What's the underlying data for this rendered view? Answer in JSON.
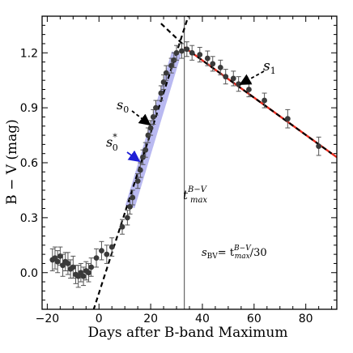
{
  "chart_data": {
    "type": "scatter",
    "xlabel": "Days after B-band Maximum",
    "ylabel": "B − V (mag)",
    "xlim": [
      -22,
      92
    ],
    "ylim": [
      -0.2,
      1.4
    ],
    "xticks": [
      -20,
      0,
      20,
      40,
      60,
      80
    ],
    "yticks": [
      0.0,
      0.3,
      0.6,
      0.9,
      1.2
    ],
    "xtick_labels": [
      "−20",
      "0",
      "20",
      "40",
      "60",
      "80"
    ],
    "ytick_labels": [
      "0.0",
      "0.3",
      "0.6",
      "0.9",
      "1.2"
    ],
    "grid": false,
    "points": [
      {
        "x": -18,
        "y": 0.07,
        "err": 0.06
      },
      {
        "x": -17,
        "y": 0.08,
        "err": 0.06
      },
      {
        "x": -16,
        "y": 0.06,
        "err": 0.06
      },
      {
        "x": -15,
        "y": 0.09,
        "err": 0.05
      },
      {
        "x": -14,
        "y": 0.04,
        "err": 0.06
      },
      {
        "x": -13,
        "y": 0.06,
        "err": 0.05
      },
      {
        "x": -12,
        "y": 0.05,
        "err": 0.06
      },
      {
        "x": -11,
        "y": 0.02,
        "err": 0.05
      },
      {
        "x": -10,
        "y": 0.03,
        "err": 0.06
      },
      {
        "x": -9,
        "y": -0.01,
        "err": 0.05
      },
      {
        "x": -8,
        "y": -0.02,
        "err": 0.06
      },
      {
        "x": -7,
        "y": 0.0,
        "err": 0.05
      },
      {
        "x": -6,
        "y": -0.02,
        "err": 0.05
      },
      {
        "x": -5,
        "y": 0.01,
        "err": 0.05
      },
      {
        "x": -4,
        "y": 0.0,
        "err": 0.05
      },
      {
        "x": -3,
        "y": 0.03,
        "err": 0.05
      },
      {
        "x": -1,
        "y": 0.08,
        "err": 0.05
      },
      {
        "x": 1,
        "y": 0.12,
        "err": 0.05
      },
      {
        "x": 3,
        "y": 0.1,
        "err": 0.05
      },
      {
        "x": 5,
        "y": 0.14,
        "err": 0.05
      },
      {
        "x": 9,
        "y": 0.25,
        "err": 0.04
      },
      {
        "x": 11,
        "y": 0.3,
        "err": 0.04
      },
      {
        "x": 12,
        "y": 0.36,
        "err": 0.04
      },
      {
        "x": 13,
        "y": 0.41,
        "err": 0.04
      },
      {
        "x": 15,
        "y": 0.5,
        "err": 0.04
      },
      {
        "x": 16,
        "y": 0.56,
        "err": 0.04
      },
      {
        "x": 17,
        "y": 0.63,
        "err": 0.04
      },
      {
        "x": 18,
        "y": 0.67,
        "err": 0.04
      },
      {
        "x": 19,
        "y": 0.75,
        "err": 0.04
      },
      {
        "x": 20,
        "y": 0.79,
        "err": 0.04
      },
      {
        "x": 21,
        "y": 0.85,
        "err": 0.04
      },
      {
        "x": 22,
        "y": 0.9,
        "err": 0.04
      },
      {
        "x": 24,
        "y": 0.98,
        "err": 0.04
      },
      {
        "x": 25,
        "y": 1.04,
        "err": 0.04
      },
      {
        "x": 26,
        "y": 1.09,
        "err": 0.04
      },
      {
        "x": 28,
        "y": 1.13,
        "err": 0.04
      },
      {
        "x": 29,
        "y": 1.16,
        "err": 0.04
      },
      {
        "x": 30,
        "y": 1.2,
        "err": 0.04
      },
      {
        "x": 32,
        "y": 1.21,
        "err": 0.04
      },
      {
        "x": 34,
        "y": 1.22,
        "err": 0.04
      },
      {
        "x": 36,
        "y": 1.2,
        "err": 0.04
      },
      {
        "x": 39,
        "y": 1.19,
        "err": 0.04
      },
      {
        "x": 42,
        "y": 1.17,
        "err": 0.04
      },
      {
        "x": 44,
        "y": 1.14,
        "err": 0.04
      },
      {
        "x": 47,
        "y": 1.12,
        "err": 0.04
      },
      {
        "x": 49,
        "y": 1.07,
        "err": 0.04
      },
      {
        "x": 52,
        "y": 1.06,
        "err": 0.04
      },
      {
        "x": 54,
        "y": 1.03,
        "err": 0.04
      },
      {
        "x": 58,
        "y": 1.0,
        "err": 0.04
      },
      {
        "x": 64,
        "y": 0.94,
        "err": 0.04
      },
      {
        "x": 73,
        "y": 0.84,
        "err": 0.05
      },
      {
        "x": 85,
        "y": 0.69,
        "err": 0.05
      }
    ],
    "fit_lines": [
      {
        "style": "dashed",
        "color": "#000000",
        "x": [
          -5,
          35
        ],
        "y": [
          -0.33,
          1.42
        ]
      },
      {
        "style": "solid",
        "color": "#e8291c",
        "x": [
          33,
          92
        ],
        "y": [
          1.23,
          0.63
        ]
      },
      {
        "style": "dashed",
        "color": "#000000",
        "x": [
          33,
          90
        ],
        "y": [
          1.23,
          0.65
        ]
      },
      {
        "style": "dashed",
        "color": "#000000",
        "x": [
          24,
          33
        ],
        "y": [
          1.36,
          1.24
        ]
      }
    ],
    "shaded_band": {
      "color": "#8b8be8",
      "x": [
        12,
        30
      ],
      "y": [
        0.36,
        1.2
      ]
    },
    "vline": {
      "x": 33,
      "color": "#666666"
    },
    "annotations": {
      "s1": {
        "text": "s",
        "sub": "1"
      },
      "s0": {
        "text": "s",
        "sub": "0"
      },
      "s0star": {
        "text": "s",
        "sub": "0",
        "sup": "*",
        "color": "#1f1fd6"
      },
      "tmax": {
        "text": "t",
        "sub": "max",
        "sup": "B−V"
      },
      "sbv": {
        "text_main": "s",
        "text_sub": "BV",
        "eq": "= t",
        "eq_sub": "max",
        "eq_sup": "B−V",
        "tail": "/30"
      }
    }
  }
}
